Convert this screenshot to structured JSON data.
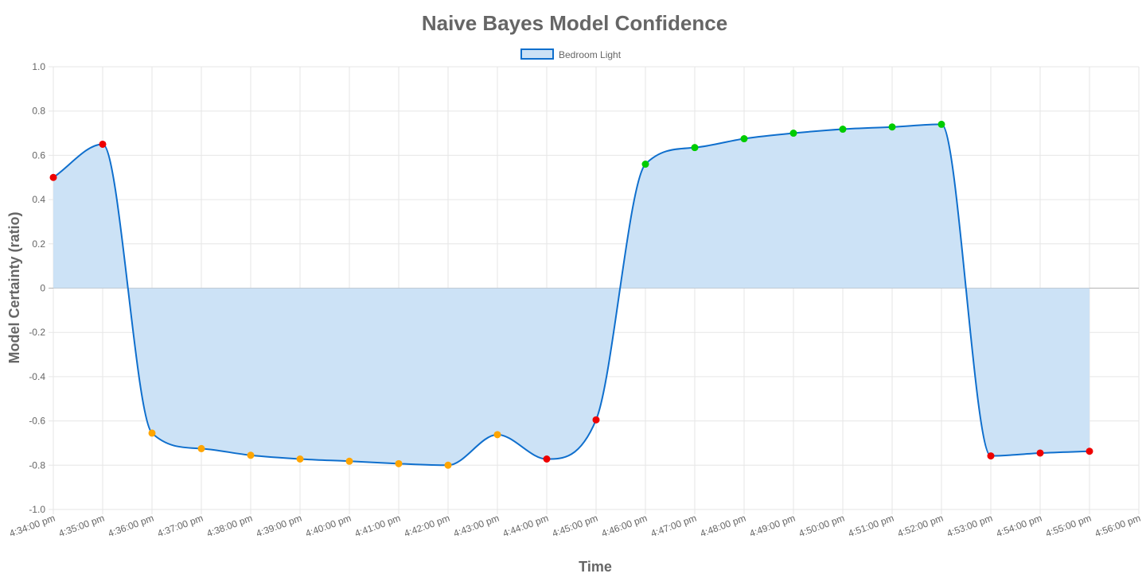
{
  "chart_data": {
    "type": "line",
    "title": "Naive Bayes Model Confidence",
    "xlabel": "Time",
    "ylabel": "Model Certainty (ratio)",
    "ylim": [
      -1.0,
      1.0
    ],
    "y_ticks": [
      "1.0",
      "0.8",
      "0.6",
      "0.4",
      "0.2",
      "0",
      "-0.2",
      "-0.4",
      "-0.6",
      "-0.8",
      "-1.0"
    ],
    "x_ticks": [
      "4:34:00 pm",
      "4:35:00 pm",
      "4:36:00 pm",
      "4:37:00 pm",
      "4:38:00 pm",
      "4:39:00 pm",
      "4:40:00 pm",
      "4:41:00 pm",
      "4:42:00 pm",
      "4:43:00 pm",
      "4:44:00 pm",
      "4:45:00 pm",
      "4:46:00 pm",
      "4:47:00 pm",
      "4:48:00 pm",
      "4:49:00 pm",
      "4:50:00 pm",
      "4:51:00 pm",
      "4:52:00 pm",
      "4:53:00 pm",
      "4:54:00 pm",
      "4:55:00 pm",
      "4:56:00 pm"
    ],
    "grid": true,
    "fill": true,
    "legend_position": "top",
    "series": [
      {
        "name": "Bedroom Light",
        "line_color": "#0f6fcd",
        "fill_color": "#cce2f6",
        "x": [
          "4:34:00 pm",
          "4:35:00 pm",
          "4:36:00 pm",
          "4:37:00 pm",
          "4:38:00 pm",
          "4:39:00 pm",
          "4:40:00 pm",
          "4:41:00 pm",
          "4:42:00 pm",
          "4:43:00 pm",
          "4:44:00 pm",
          "4:45:00 pm",
          "4:46:00 pm",
          "4:47:00 pm",
          "4:48:00 pm",
          "4:49:00 pm",
          "4:50:00 pm",
          "4:51:00 pm",
          "4:52:00 pm",
          "4:53:00 pm",
          "4:54:00 pm",
          "4:55:00 pm"
        ],
        "values": [
          0.5,
          0.65,
          -0.655,
          -0.725,
          -0.755,
          -0.772,
          -0.782,
          -0.793,
          -0.8,
          -0.662,
          -0.772,
          -0.595,
          0.56,
          0.635,
          0.675,
          0.7,
          0.718,
          0.728,
          0.74,
          -0.758,
          -0.745,
          -0.737
        ],
        "point_colors": [
          "#ee0000",
          "#ee0000",
          "#ffa500",
          "#ffa500",
          "#ffa500",
          "#ffa500",
          "#ffa500",
          "#ffa500",
          "#ffa500",
          "#ffa500",
          "#ee0000",
          "#ee0000",
          "#00cc00",
          "#00cc00",
          "#00cc00",
          "#00cc00",
          "#00cc00",
          "#00cc00",
          "#00cc00",
          "#ee0000",
          "#ee0000",
          "#ee0000"
        ]
      }
    ]
  }
}
